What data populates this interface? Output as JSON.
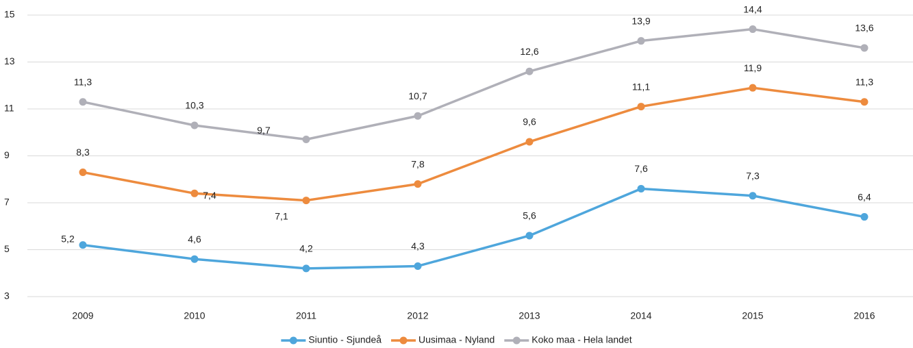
{
  "chart_data": {
    "type": "line",
    "categories": [
      "2009",
      "2010",
      "2011",
      "2012",
      "2013",
      "2014",
      "2015",
      "2016"
    ],
    "series": [
      {
        "name": "Siuntio - Sjundeå",
        "color": "#4ea6dc",
        "values": [
          5.2,
          4.6,
          4.2,
          4.3,
          5.6,
          7.6,
          7.3,
          6.4
        ],
        "value_labels": [
          "5,2",
          "4,6",
          "4,2",
          "4,3",
          "5,6",
          "7,6",
          "7,3",
          "6,4"
        ]
      },
      {
        "name": "Uusimaa - Nyland",
        "color": "#ed8b3e",
        "values": [
          8.3,
          7.4,
          7.1,
          7.8,
          9.6,
          11.1,
          11.9,
          11.3
        ],
        "value_labels": [
          "8,3",
          "7,4",
          "7,1",
          "7,8",
          "9,6",
          "11,1",
          "11,9",
          "11,3"
        ]
      },
      {
        "name": "Koko maa - Hela landet",
        "color": "#b0b0b8",
        "values": [
          11.3,
          10.3,
          9.7,
          10.7,
          12.6,
          13.9,
          14.4,
          13.6
        ],
        "value_labels": [
          "11,3",
          "10,3",
          "9,7",
          "10,7",
          "12,6",
          "13,9",
          "14,4",
          "13,6"
        ]
      }
    ],
    "ylim": [
      3,
      15
    ],
    "yticks": [
      3,
      5,
      7,
      9,
      11,
      13,
      15
    ],
    "grid": true,
    "legend": "bottom"
  }
}
